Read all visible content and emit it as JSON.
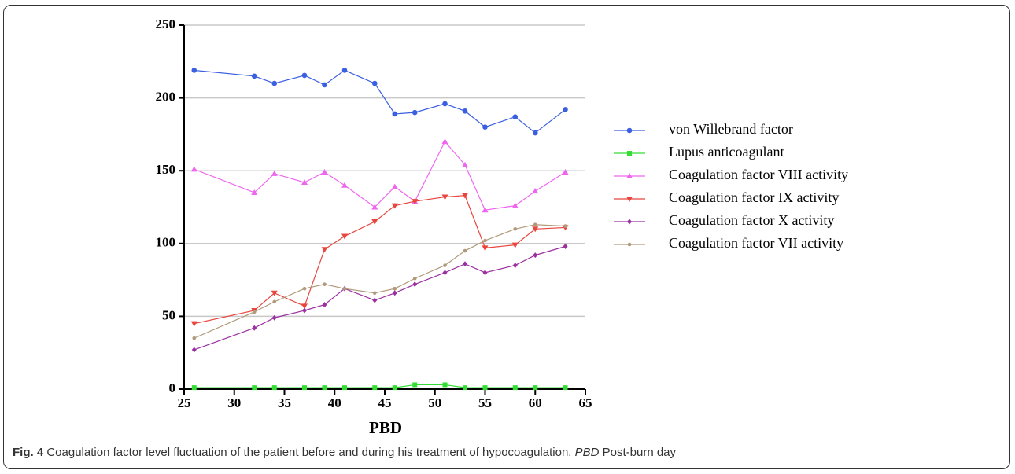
{
  "chart_data": {
    "type": "line",
    "xlabel": "PBD",
    "x": [
      26,
      32,
      34,
      37,
      39,
      41,
      44,
      46,
      48,
      51,
      53,
      55,
      58,
      60,
      63
    ],
    "series": [
      {
        "name": "von Willebrand factor",
        "color": "#3a5fe0",
        "marker": "circle",
        "values": [
          219,
          215,
          210,
          215.5,
          209,
          219,
          210,
          189,
          190,
          196,
          191,
          180,
          187,
          176,
          192
        ]
      },
      {
        "name": "Lupus anticoagulant",
        "color": "#33dd33",
        "marker": "square",
        "values": [
          1,
          1,
          1,
          1,
          1,
          1,
          1,
          1,
          3,
          3,
          1,
          1,
          1,
          1,
          1
        ]
      },
      {
        "name": "Coagulation factor VIII activity",
        "color": "#ee66ee",
        "marker": "triangle-up",
        "values": [
          151,
          135,
          148,
          142,
          149,
          140,
          125,
          139,
          129,
          170,
          154,
          123,
          126,
          136,
          149
        ]
      },
      {
        "name": "Coagulation factor IX activity",
        "color": "#e8453c",
        "marker": "triangle-down",
        "values": [
          45,
          54,
          66,
          57,
          96,
          105,
          115,
          126,
          129,
          132,
          133,
          97,
          99,
          110,
          111
        ]
      },
      {
        "name": "Coagulation factor X activity",
        "color": "#9b30a0",
        "marker": "diamond",
        "values": [
          27,
          42,
          49,
          54,
          58,
          69,
          61,
          66,
          72,
          80,
          86,
          80,
          85,
          92,
          98
        ]
      },
      {
        "name": "Coagulation factor VII activity",
        "color": "#b09a7a",
        "marker": "dot",
        "values": [
          35,
          53,
          60,
          69,
          72,
          69,
          66,
          69,
          76,
          85,
          95,
          102,
          110,
          113,
          112
        ]
      }
    ],
    "xlim": [
      25,
      65
    ],
    "xticks": [
      25,
      30,
      35,
      40,
      45,
      50,
      55,
      60,
      65
    ],
    "ylim": [
      0,
      250
    ],
    "yticks": [
      0,
      50,
      100,
      150,
      200,
      250
    ],
    "grid": true,
    "legend": "right"
  },
  "caption": {
    "label": "Fig. 4",
    "text": "Coagulation factor level fluctuation of the patient before and during his treatment of hypocoagulation.",
    "abbr": "PBD",
    "definition": "Post-burn day"
  }
}
